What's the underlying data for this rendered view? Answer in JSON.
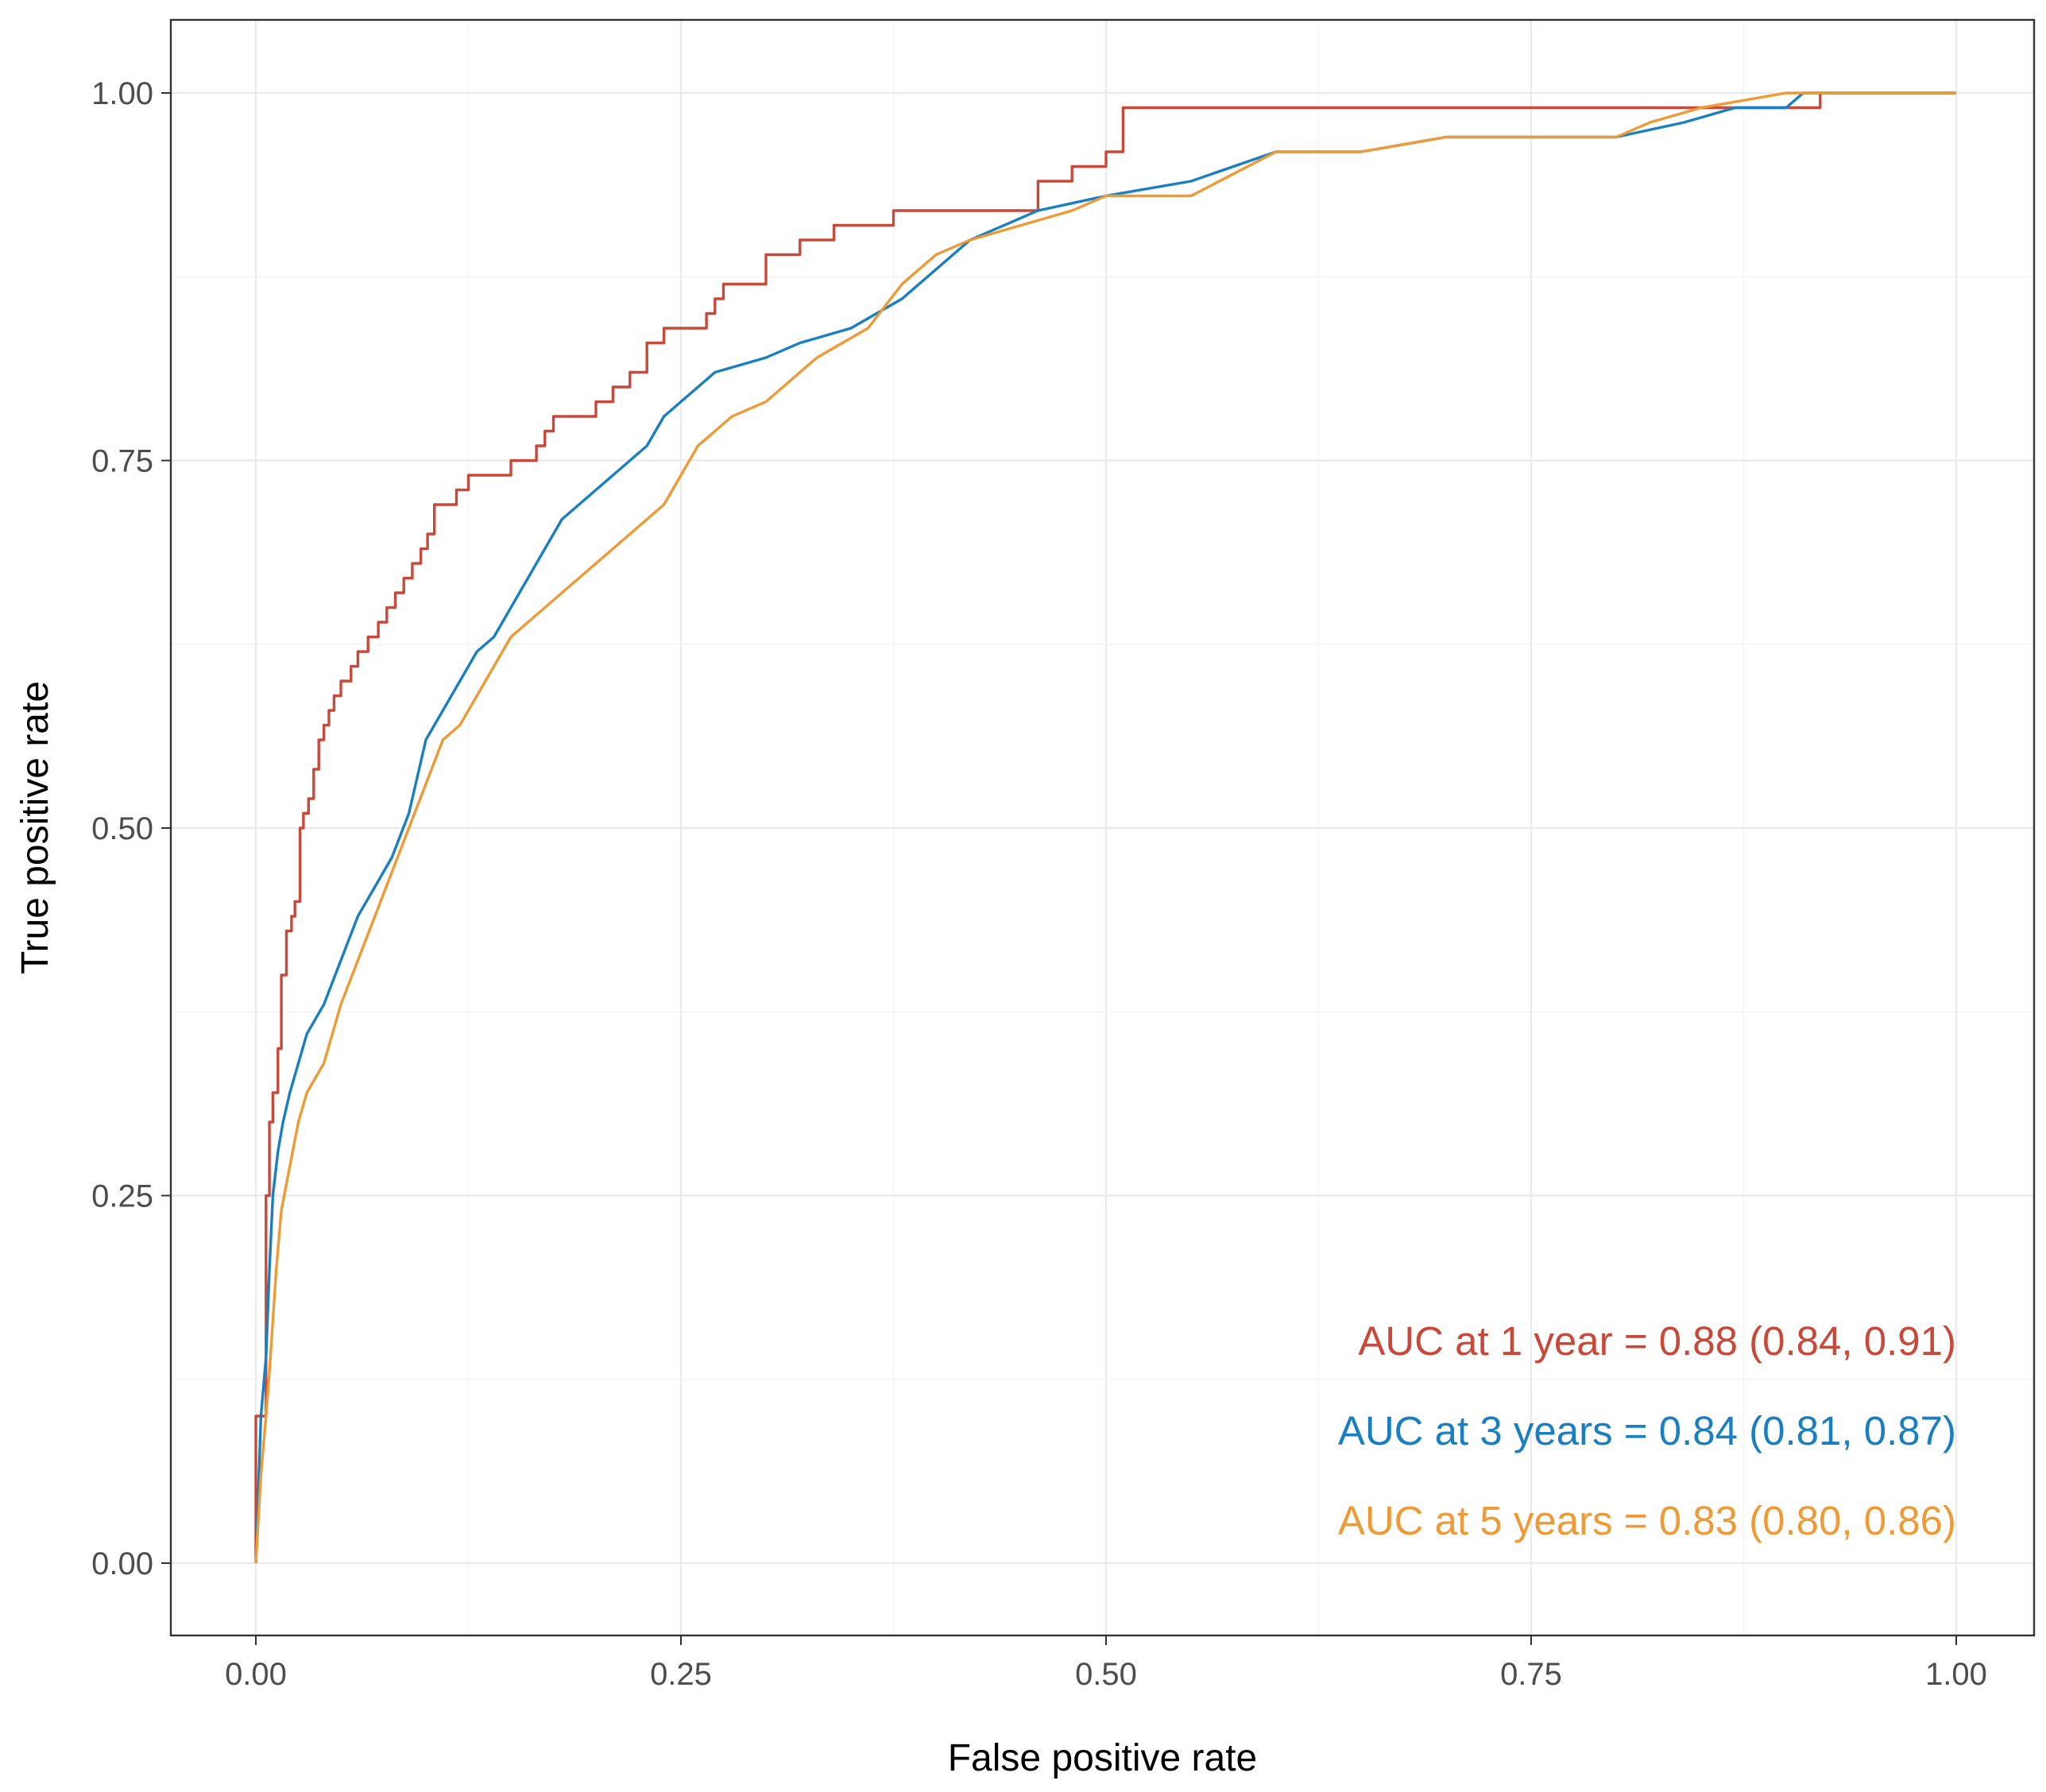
{
  "chart_data": {
    "type": "line",
    "title": "",
    "xlabel": "False positive rate",
    "ylabel": "True positive rate",
    "xlim": [
      0,
      1
    ],
    "ylim": [
      0,
      1
    ],
    "x_ticks": [
      0,
      0.25,
      0.5,
      0.75,
      1
    ],
    "x_tick_labels": [
      "0.00",
      "0.25",
      "0.50",
      "0.75",
      "1.00"
    ],
    "y_ticks": [
      0,
      0.25,
      0.5,
      0.75,
      1
    ],
    "y_tick_labels": [
      "0.00",
      "0.25",
      "0.50",
      "0.75",
      "1.00"
    ],
    "grid": true,
    "legend_position": "bottom-right",
    "series": [
      {
        "name": "AUC at 1 year",
        "label": "AUC at 1 year = 0.88 (0.84, 0.91)",
        "color": "#c8493a",
        "x": [
          0,
          0,
          0.006,
          0.006,
          0.008,
          0.008,
          0.01,
          0.01,
          0.013,
          0.013,
          0.015,
          0.015,
          0.018,
          0.018,
          0.021,
          0.021,
          0.023,
          0.023,
          0.026,
          0.026,
          0.028,
          0.028,
          0.031,
          0.031,
          0.034,
          0.034,
          0.037,
          0.037,
          0.04,
          0.04,
          0.043,
          0.043,
          0.046,
          0.046,
          0.05,
          0.05,
          0.056,
          0.056,
          0.06,
          0.06,
          0.066,
          0.066,
          0.072,
          0.072,
          0.077,
          0.077,
          0.082,
          0.082,
          0.087,
          0.087,
          0.092,
          0.092,
          0.097,
          0.097,
          0.101,
          0.101,
          0.105,
          0.105,
          0.118,
          0.118,
          0.125,
          0.125,
          0.15,
          0.15,
          0.165,
          0.165,
          0.17,
          0.17,
          0.175,
          0.175,
          0.2,
          0.2,
          0.21,
          0.21,
          0.22,
          0.22,
          0.23,
          0.23,
          0.24,
          0.24,
          0.265,
          0.265,
          0.27,
          0.27,
          0.275,
          0.275,
          0.3,
          0.3,
          0.32,
          0.32,
          0.34,
          0.34,
          0.375,
          0.375,
          0.46,
          0.46,
          0.48,
          0.48,
          0.5,
          0.5,
          0.51,
          0.51,
          0.92,
          0.92,
          1
        ],
        "y": [
          0,
          0.1,
          0.1,
          0.25,
          0.25,
          0.3,
          0.3,
          0.32,
          0.32,
          0.35,
          0.35,
          0.4,
          0.4,
          0.43,
          0.43,
          0.44,
          0.44,
          0.45,
          0.45,
          0.5,
          0.5,
          0.51,
          0.51,
          0.52,
          0.52,
          0.54,
          0.54,
          0.56,
          0.56,
          0.57,
          0.57,
          0.58,
          0.58,
          0.59,
          0.59,
          0.6,
          0.6,
          0.61,
          0.61,
          0.62,
          0.62,
          0.63,
          0.63,
          0.64,
          0.64,
          0.65,
          0.65,
          0.66,
          0.66,
          0.67,
          0.67,
          0.68,
          0.68,
          0.69,
          0.69,
          0.7,
          0.7,
          0.72,
          0.72,
          0.73,
          0.73,
          0.74,
          0.74,
          0.75,
          0.75,
          0.76,
          0.76,
          0.77,
          0.77,
          0.78,
          0.78,
          0.79,
          0.79,
          0.8,
          0.8,
          0.81,
          0.81,
          0.83,
          0.83,
          0.84,
          0.84,
          0.85,
          0.85,
          0.86,
          0.86,
          0.87,
          0.87,
          0.89,
          0.89,
          0.9,
          0.9,
          0.91,
          0.91,
          0.92,
          0.92,
          0.94,
          0.94,
          0.95,
          0.95,
          0.96,
          0.96,
          0.99,
          0.99,
          1,
          1
        ]
      },
      {
        "name": "AUC at 3 years",
        "label": "AUC at 3 years = 0.84 (0.81, 0.87)",
        "color": "#1a7fc1",
        "x": [
          0,
          0.003,
          0.006,
          0.008,
          0.01,
          0.013,
          0.016,
          0.02,
          0.025,
          0.03,
          0.035,
          0.04,
          0.05,
          0.06,
          0.07,
          0.08,
          0.09,
          0.1,
          0.11,
          0.12,
          0.13,
          0.14,
          0.15,
          0.16,
          0.17,
          0.18,
          0.19,
          0.2,
          0.21,
          0.22,
          0.23,
          0.24,
          0.25,
          0.27,
          0.3,
          0.32,
          0.35,
          0.38,
          0.4,
          0.42,
          0.44,
          0.46,
          0.5,
          0.55,
          0.6,
          0.65,
          0.7,
          0.75,
          0.8,
          0.84,
          0.87,
          0.9,
          0.91,
          1
        ],
        "y": [
          0,
          0.1,
          0.14,
          0.2,
          0.25,
          0.28,
          0.3,
          0.32,
          0.34,
          0.36,
          0.37,
          0.38,
          0.41,
          0.44,
          0.46,
          0.48,
          0.51,
          0.56,
          0.58,
          0.6,
          0.62,
          0.63,
          0.65,
          0.67,
          0.69,
          0.71,
          0.72,
          0.73,
          0.74,
          0.75,
          0.76,
          0.78,
          0.79,
          0.81,
          0.82,
          0.83,
          0.84,
          0.86,
          0.88,
          0.9,
          0.91,
          0.92,
          0.93,
          0.94,
          0.96,
          0.96,
          0.97,
          0.97,
          0.97,
          0.98,
          0.99,
          0.99,
          1,
          1
        ]
      },
      {
        "name": "AUC at 5 years",
        "label": "AUC at 5 years = 0.83 (0.80, 0.86)",
        "color": "#ee9a36",
        "x": [
          0,
          0.003,
          0.006,
          0.008,
          0.012,
          0.015,
          0.02,
          0.025,
          0.03,
          0.04,
          0.05,
          0.06,
          0.07,
          0.08,
          0.09,
          0.1,
          0.11,
          0.12,
          0.13,
          0.14,
          0.15,
          0.16,
          0.17,
          0.18,
          0.2,
          0.22,
          0.24,
          0.26,
          0.28,
          0.3,
          0.33,
          0.36,
          0.38,
          0.4,
          0.42,
          0.45,
          0.48,
          0.5,
          0.55,
          0.6,
          0.65,
          0.7,
          0.75,
          0.8,
          0.82,
          0.85,
          0.9,
          1
        ],
        "y": [
          0,
          0.06,
          0.1,
          0.13,
          0.2,
          0.24,
          0.27,
          0.3,
          0.32,
          0.34,
          0.38,
          0.41,
          0.44,
          0.47,
          0.5,
          0.53,
          0.56,
          0.57,
          0.59,
          0.61,
          0.63,
          0.64,
          0.65,
          0.66,
          0.68,
          0.7,
          0.72,
          0.76,
          0.78,
          0.79,
          0.82,
          0.84,
          0.87,
          0.89,
          0.9,
          0.91,
          0.92,
          0.93,
          0.93,
          0.96,
          0.96,
          0.97,
          0.97,
          0.97,
          0.98,
          0.99,
          1,
          1
        ]
      }
    ]
  }
}
